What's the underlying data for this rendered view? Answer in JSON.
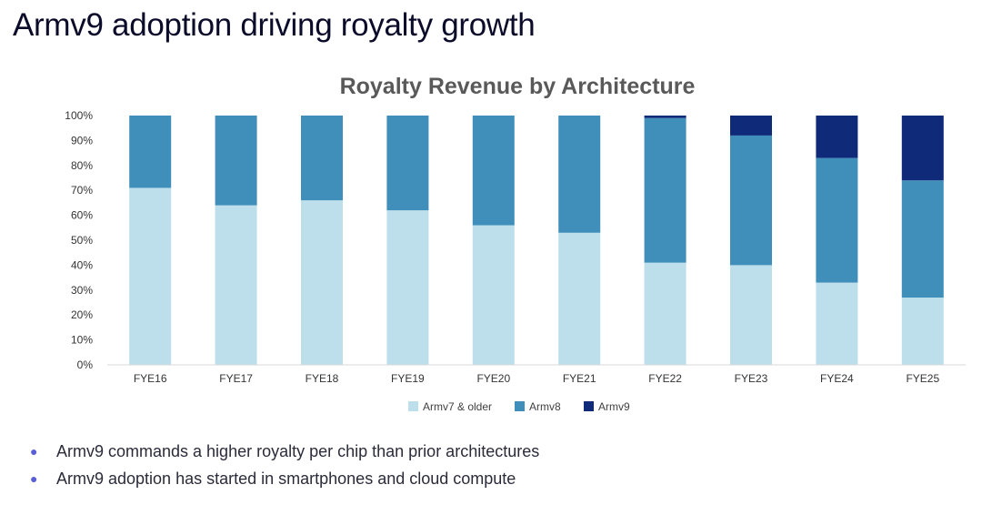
{
  "page": {
    "title": "Armv9 adoption driving royalty growth",
    "bullets": [
      "Armv9 commands a higher royalty per chip than prior architectures",
      "Armv9 adoption has started in smartphones and cloud compute"
    ],
    "bullet_icon": "bullet-dot-icon",
    "bullet_color": "#5b5fd6"
  },
  "chart_data": {
    "type": "bar",
    "stacked": true,
    "title": "Royalty Revenue by Architecture",
    "xlabel": "",
    "ylabel": "",
    "ylim": [
      0,
      100
    ],
    "y_ticks": [
      "0%",
      "10%",
      "20%",
      "30%",
      "40%",
      "50%",
      "60%",
      "70%",
      "80%",
      "90%",
      "100%"
    ],
    "y_tick_values": [
      0,
      10,
      20,
      30,
      40,
      50,
      60,
      70,
      80,
      90,
      100
    ],
    "categories": [
      "FYE16",
      "FYE17",
      "FYE18",
      "FYE19",
      "FYE20",
      "FYE21",
      "FYE22",
      "FYE23",
      "FYE24",
      "FYE25"
    ],
    "series": [
      {
        "name": "Armv7 & older",
        "color": "#bcdfeb",
        "values": [
          71,
          64,
          66,
          62,
          56,
          53,
          41,
          40,
          33,
          27
        ]
      },
      {
        "name": "Armv8",
        "color": "#3f8fba",
        "values": [
          29,
          36,
          34,
          38,
          44,
          47,
          58,
          52,
          50,
          47
        ]
      },
      {
        "name": "Armv9",
        "color": "#102a7a",
        "values": [
          0,
          0,
          0,
          0,
          0,
          0,
          1,
          8,
          17,
          26
        ]
      }
    ],
    "grid": false,
    "legend_position": "bottom"
  }
}
